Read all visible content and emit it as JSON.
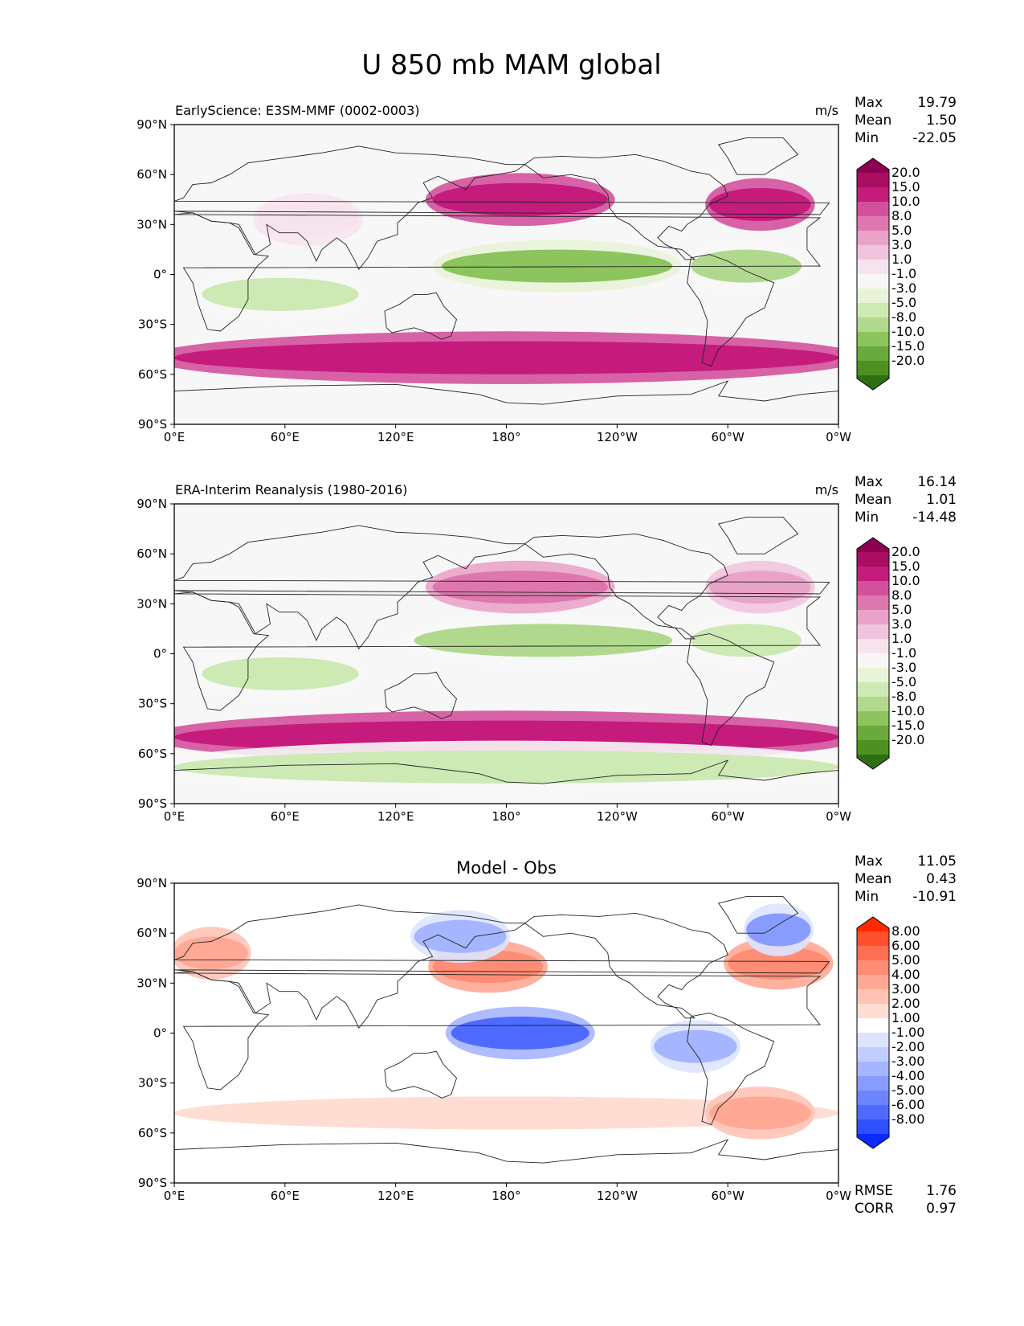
{
  "chart_data": {
    "type": "heatmap",
    "title": "U 850 mb MAM global",
    "x_ticks": [
      "0°E",
      "60°E",
      "120°E",
      "180°",
      "120°W",
      "60°W",
      "0°W"
    ],
    "y_ticks": [
      "90°N",
      "60°N",
      "30°N",
      "0°",
      "30°S",
      "60°S",
      "90°S"
    ],
    "panels": [
      {
        "id": "model",
        "title_left": "EarlyScience: E3SM-MMF (0002-0003)",
        "title_center": "",
        "units": "m/s",
        "stats": [
          {
            "label": "Max",
            "value": "19.79"
          },
          {
            "label": "Mean",
            "value": "1.50"
          },
          {
            "label": "Min",
            "value": "-22.05"
          }
        ],
        "colorbar": {
          "levels": [
            "20.0",
            "15.0",
            "10.0",
            "8.0",
            "5.0",
            "3.0",
            "1.0",
            "-1.0",
            "-3.0",
            "-5.0",
            "-8.0",
            "-10.0",
            "-15.0",
            "-20.0"
          ],
          "colors": [
            "#8e0152",
            "#a90e61",
            "#c51b7d",
            "#d3519c",
            "#de77ae",
            "#e9a3c9",
            "#f1c4de",
            "#f7e3ee",
            "#f7f7f7",
            "#e8f3d8",
            "#cde9b4",
            "#b1d98d",
            "#8cc45d",
            "#6aaa3c",
            "#4d9221",
            "#2f6e15"
          ]
        },
        "features": [
          {
            "lat": 45,
            "lon_start": 140,
            "lon_end": 235,
            "value": 15
          },
          {
            "lat": 42,
            "lon_start": 290,
            "lon_end": 345,
            "value": 15
          },
          {
            "lat": 5,
            "lon_start": 145,
            "lon_end": 270,
            "value": -10
          },
          {
            "lat": 5,
            "lon_start": 280,
            "lon_end": 340,
            "value": -8
          },
          {
            "lat": -50,
            "lon_start": 0,
            "lon_end": 360,
            "value": 15
          },
          {
            "lat": 33,
            "lon_start": 45,
            "lon_end": 100,
            "value": 1
          },
          {
            "lat": -12,
            "lon_start": 15,
            "lon_end": 100,
            "value": -5
          }
        ]
      },
      {
        "id": "obs",
        "title_left": "ERA-Interim Reanalysis (1980-2016)",
        "title_center": "",
        "units": "m/s",
        "stats": [
          {
            "label": "Max",
            "value": "16.14"
          },
          {
            "label": "Mean",
            "value": "1.01"
          },
          {
            "label": "Min",
            "value": "-14.48"
          }
        ],
        "colorbar": {
          "levels": [
            "20.0",
            "15.0",
            "10.0",
            "8.0",
            "5.0",
            "3.0",
            "1.0",
            "-1.0",
            "-3.0",
            "-5.0",
            "-8.0",
            "-10.0",
            "-15.0",
            "-20.0"
          ],
          "colors": [
            "#8e0152",
            "#a90e61",
            "#c51b7d",
            "#d3519c",
            "#de77ae",
            "#e9a3c9",
            "#f1c4de",
            "#f7e3ee",
            "#f7f7f7",
            "#e8f3d8",
            "#cde9b4",
            "#b1d98d",
            "#8cc45d",
            "#6aaa3c",
            "#4d9221",
            "#2f6e15"
          ]
        },
        "features": [
          {
            "lat": 40,
            "lon_start": 140,
            "lon_end": 235,
            "value": 8
          },
          {
            "lat": 40,
            "lon_start": 290,
            "lon_end": 345,
            "value": 5
          },
          {
            "lat": 8,
            "lon_start": 130,
            "lon_end": 270,
            "value": -8
          },
          {
            "lat": 8,
            "lon_start": 280,
            "lon_end": 340,
            "value": -5
          },
          {
            "lat": -50,
            "lon_start": 0,
            "lon_end": 360,
            "value": 15
          },
          {
            "lat": -12,
            "lon_start": 15,
            "lon_end": 100,
            "value": -5
          },
          {
            "lat": -68,
            "lon_start": 0,
            "lon_end": 360,
            "value": -5
          }
        ]
      },
      {
        "id": "diff",
        "title_left": "",
        "title_center": "Model - Obs",
        "units": "",
        "stats": [
          {
            "label": "Max",
            "value": "11.05"
          },
          {
            "label": "Mean",
            "value": "0.43"
          },
          {
            "label": "Min",
            "value": "-10.91"
          }
        ],
        "bottom_stats": [
          {
            "label": "RMSE",
            "value": "1.76"
          },
          {
            "label": "CORR",
            "value": "0.97"
          }
        ],
        "colorbar": {
          "levels": [
            "8.00",
            "6.00",
            "5.00",
            "4.00",
            "3.00",
            "2.00",
            "1.00",
            "-1.00",
            "-2.00",
            "-3.00",
            "-4.00",
            "-5.00",
            "-6.00",
            "-8.00"
          ],
          "colors": [
            "#ff2a00",
            "#ff4f2c",
            "#ff6e52",
            "#ff8c74",
            "#ffa895",
            "#ffc3b4",
            "#ffddd2",
            "#ffffff",
            "#dde4ff",
            "#c2cdff",
            "#a6b5ff",
            "#889cff",
            "#6d84ff",
            "#4f6bff",
            "#2f50ff",
            "#0a2aff"
          ]
        },
        "features": [
          {
            "lat": 48,
            "lon_start": 0,
            "lon_end": 40,
            "value": 4
          },
          {
            "lat": 40,
            "lon_start": 140,
            "lon_end": 200,
            "value": 5
          },
          {
            "lat": 42,
            "lon_start": 300,
            "lon_end": 355,
            "value": 5
          },
          {
            "lat": 0,
            "lon_start": 150,
            "lon_end": 225,
            "value": -6
          },
          {
            "lat": -8,
            "lon_start": 260,
            "lon_end": 305,
            "value": -3
          },
          {
            "lat": -48,
            "lon_start": 0,
            "lon_end": 360,
            "value": 2
          },
          {
            "lat": -48,
            "lon_start": 290,
            "lon_end": 345,
            "value": 4
          },
          {
            "lat": 62,
            "lon_start": 310,
            "lon_end": 345,
            "value": -4
          },
          {
            "lat": 58,
            "lon_start": 130,
            "lon_end": 180,
            "value": -3
          }
        ]
      }
    ]
  }
}
